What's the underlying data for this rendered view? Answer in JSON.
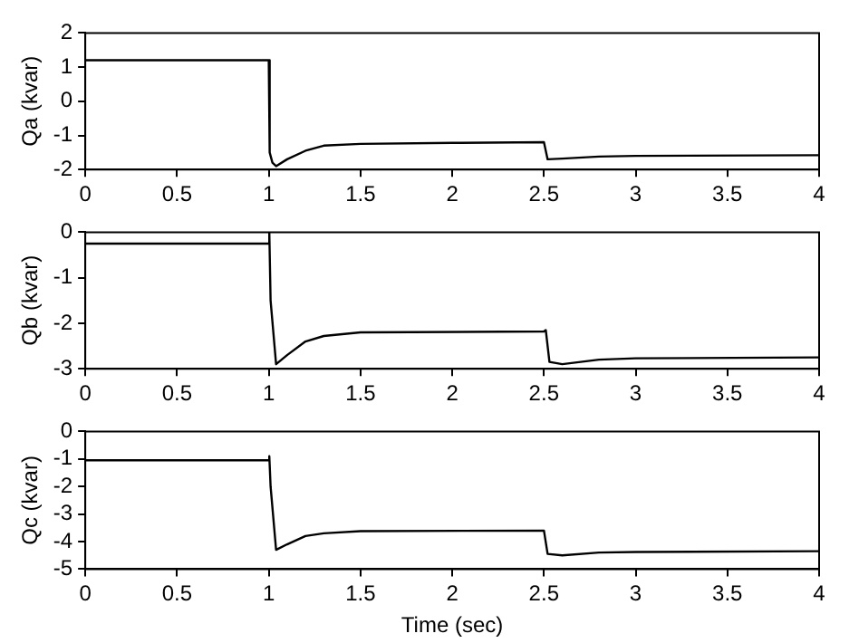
{
  "chart_data": [
    {
      "type": "line",
      "ylabel": "Qa (kvar)",
      "xlim": [
        0,
        4
      ],
      "xticks": [
        0,
        0.5,
        1,
        1.5,
        2,
        2.5,
        3,
        3.5,
        4
      ],
      "ylim": [
        -2,
        2
      ],
      "yticks": [
        -2,
        -1,
        0,
        1,
        2
      ],
      "grid": false,
      "legend": false,
      "marker": "none",
      "series": [
        {
          "color": "#000000",
          "x": [
            0,
            1.0,
            1.005,
            1.02,
            1.04,
            1.1,
            1.2,
            1.3,
            1.5,
            2.0,
            2.5,
            2.52,
            2.6,
            2.8,
            3.0,
            4.0
          ],
          "values": [
            1.2,
            1.2,
            -1.5,
            -1.8,
            -1.9,
            -1.7,
            -1.45,
            -1.3,
            -1.25,
            -1.22,
            -1.2,
            -1.7,
            -1.68,
            -1.62,
            -1.6,
            -1.58
          ]
        }
      ]
    },
    {
      "type": "line",
      "ylabel": "Qb (kvar)",
      "xlim": [
        0,
        4
      ],
      "xticks": [
        0,
        0.5,
        1,
        1.5,
        2,
        2.5,
        3,
        3.5,
        4
      ],
      "ylim": [
        -3,
        0
      ],
      "yticks": [
        -3,
        -2,
        -1,
        0
      ],
      "grid": false,
      "legend": false,
      "marker": "none",
      "series": [
        {
          "color": "#000000",
          "x": [
            0,
            1.0,
            1.003,
            1.01,
            1.04,
            1.1,
            1.2,
            1.3,
            1.5,
            2.5,
            2.51,
            2.53,
            2.6,
            2.8,
            3.0,
            4.0
          ],
          "values": [
            -0.25,
            -0.25,
            0,
            -1.5,
            -2.9,
            -2.7,
            -2.4,
            -2.28,
            -2.2,
            -2.18,
            -2.15,
            -2.85,
            -2.9,
            -2.8,
            -2.77,
            -2.75
          ]
        }
      ]
    },
    {
      "type": "line",
      "xlabel": "Time (sec)",
      "ylabel": "Qc (kvar)",
      "xlim": [
        0,
        4
      ],
      "xticks": [
        0,
        0.5,
        1,
        1.5,
        2,
        2.5,
        3,
        3.5,
        4
      ],
      "ylim": [
        -5,
        0
      ],
      "yticks": [
        -5,
        -4,
        -3,
        -2,
        -1,
        0
      ],
      "grid": false,
      "legend": false,
      "marker": "none",
      "series": [
        {
          "color": "#000000",
          "x": [
            0,
            1.0,
            1.003,
            1.01,
            1.04,
            1.1,
            1.2,
            1.3,
            1.5,
            2.5,
            2.52,
            2.6,
            2.8,
            3.0,
            4.0
          ],
          "values": [
            -1.05,
            -1.05,
            -0.9,
            -2,
            -4.3,
            -4.1,
            -3.8,
            -3.7,
            -3.62,
            -3.6,
            -4.45,
            -4.5,
            -4.4,
            -4.38,
            -4.35
          ]
        }
      ]
    }
  ]
}
